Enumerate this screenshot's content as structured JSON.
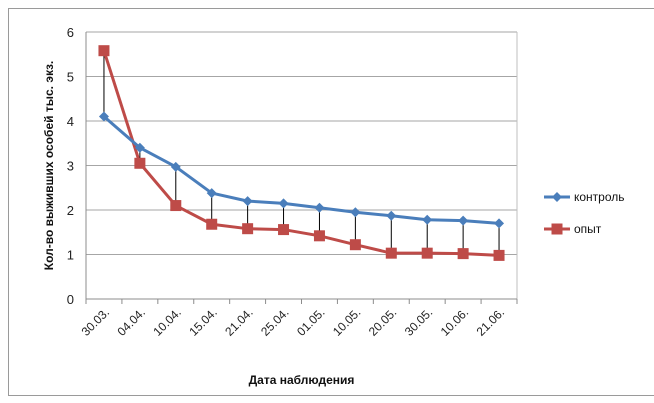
{
  "chart_data": {
    "type": "line",
    "title": "",
    "xlabel": "Дата наблюдения",
    "ylabel": "Кол-во выживших особей тыс. экз.",
    "ylim": [
      0,
      6
    ],
    "yticks": [
      0,
      1,
      2,
      3,
      4,
      5,
      6
    ],
    "grid": true,
    "legend_position": "right",
    "categories": [
      "30.03.",
      "04.04.",
      "10.04.",
      "15.04.",
      "21.04.",
      "25.04.",
      "01.05.",
      "10.05.",
      "20.05.",
      "30.05.",
      "10.06.",
      "21.06."
    ],
    "series": [
      {
        "name": "контроль",
        "color": "#4a7ebb",
        "marker": "diamond",
        "values": [
          4.1,
          3.4,
          2.97,
          2.38,
          2.2,
          2.15,
          2.05,
          1.95,
          1.87,
          1.78,
          1.76,
          1.7
        ]
      },
      {
        "name": "опыт",
        "color": "#be4b48",
        "marker": "square",
        "values": [
          5.58,
          3.05,
          2.1,
          1.68,
          1.58,
          1.56,
          1.42,
          1.22,
          1.03,
          1.03,
          1.02,
          0.98
        ]
      }
    ],
    "drop_lines": true
  }
}
